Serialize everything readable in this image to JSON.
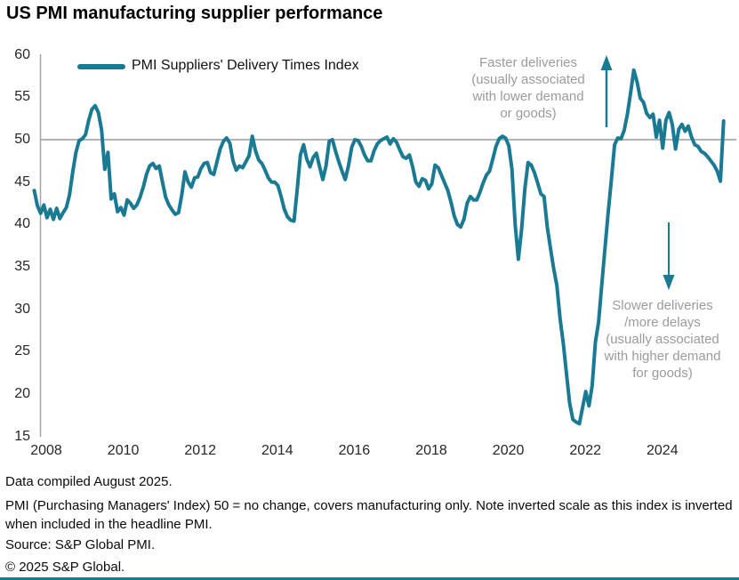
{
  "title": "US PMI manufacturing supplier performance",
  "legend": {
    "label": "PMI Suppliers' Delivery Times Index"
  },
  "annotations": {
    "faster": {
      "lines": [
        "Faster deliveries",
        "(usually associated",
        "with lower demand",
        "or goods)"
      ]
    },
    "slower": {
      "lines": [
        "Slower deliveries",
        "/more delays",
        "(usually associated",
        "with higher demand",
        "for goods)"
      ]
    }
  },
  "footnotes": {
    "compiled": "Data compiled August 2025.",
    "note": "PMI (Purchasing Managers' Index) 50 =  no change, covers manufacturing only. Note inverted scale as this index is inverted when included in the headline PMI.",
    "source": "Source: S&P Global PMI.",
    "copyright": "© 2025 S&P Global."
  },
  "colors": {
    "line": "#1b7a93",
    "arrow": "#1b7a93",
    "reference_line": "#b3b3b3",
    "axis": "#a6a6a6",
    "annotation_text": "#9b9b9b",
    "bottom_rule": "#1b7a93"
  },
  "chart_data": {
    "type": "line",
    "title": "US PMI manufacturing supplier performance",
    "xlabel": "",
    "ylabel": "",
    "ylim": [
      15,
      60
    ],
    "yticks": [
      60,
      55,
      50,
      45,
      40,
      35,
      30,
      25,
      20,
      15
    ],
    "xticks": [
      2008,
      2010,
      2012,
      2014,
      2016,
      2018,
      2020,
      2022,
      2024
    ],
    "grid": "off",
    "legend_position": "top-left-inside",
    "reference_line": 50,
    "series": [
      {
        "name": "PMI Suppliers' Delivery Times Index",
        "frequency": "monthly",
        "start": "2007-09",
        "end": "2025-08",
        "values": [
          44.0,
          42.2,
          41.3,
          42.3,
          40.8,
          41.8,
          40.6,
          41.9,
          40.7,
          41.4,
          42.0,
          43.5,
          46.2,
          48.5,
          49.9,
          50.1,
          50.6,
          52.3,
          53.6,
          54.0,
          53.2,
          51.2,
          46.5,
          48.5,
          43.0,
          43.6,
          41.5,
          42.0,
          41.1,
          42.9,
          42.5,
          41.9,
          42.3,
          43.2,
          44.4,
          45.9,
          46.9,
          47.2,
          46.6,
          46.9,
          45.0,
          43.2,
          42.3,
          41.7,
          41.2,
          41.4,
          43.5,
          46.2,
          45.0,
          44.4,
          45.5,
          45.6,
          46.6,
          47.2,
          47.3,
          46.1,
          45.9,
          47.4,
          48.9,
          49.8,
          50.2,
          49.6,
          47.5,
          46.4,
          46.9,
          46.7,
          47.4,
          48.1,
          50.4,
          48.7,
          47.6,
          47.2,
          46.4,
          45.5,
          45.0,
          45.0,
          44.6,
          43.3,
          41.8,
          40.9,
          40.5,
          40.4,
          44.1,
          48.2,
          49.4,
          47.7,
          46.8,
          47.9,
          48.4,
          46.8,
          45.3,
          46.9,
          49.8,
          50.0,
          48.6,
          47.4,
          46.3,
          45.3,
          46.9,
          49.1,
          50.0,
          49.9,
          49.2,
          48.2,
          47.5,
          47.5,
          48.7,
          49.5,
          49.9,
          50.1,
          50.3,
          49.5,
          50.1,
          49.7,
          48.8,
          48.0,
          47.8,
          48.2,
          46.8,
          45.0,
          44.5,
          45.4,
          45.2,
          44.2,
          44.8,
          47.0,
          46.7,
          45.8,
          44.9,
          44.0,
          42.6,
          41.0,
          40.0,
          39.7,
          40.6,
          42.5,
          43.3,
          42.9,
          42.9,
          43.8,
          44.9,
          45.8,
          46.3,
          47.7,
          49.2,
          50.1,
          50.4,
          50.2,
          49.3,
          46.5,
          40.0,
          35.9,
          39.5,
          44.2,
          47.3,
          47.0,
          46.1,
          44.9,
          43.6,
          43.3,
          39.7,
          37.2,
          34.8,
          32.8,
          28.9,
          26.0,
          22.4,
          18.9,
          17.0,
          16.7,
          16.5,
          18.4,
          20.3,
          18.6,
          21.0,
          26.1,
          28.5,
          32.9,
          37.2,
          41.4,
          45.3,
          49.4,
          50.2,
          50.1,
          51.1,
          53.0,
          55.5,
          58.2,
          56.8,
          54.9,
          54.4,
          53.1,
          52.6,
          53.0,
          50.3,
          52.3,
          49.0,
          52.3,
          53.2,
          51.8,
          48.9,
          51.2,
          51.8,
          51.0,
          51.6,
          50.3,
          49.4,
          49.2,
          48.6,
          48.4,
          48.0,
          47.5,
          47.0,
          46.3,
          45.1,
          52.2
        ]
      }
    ]
  }
}
